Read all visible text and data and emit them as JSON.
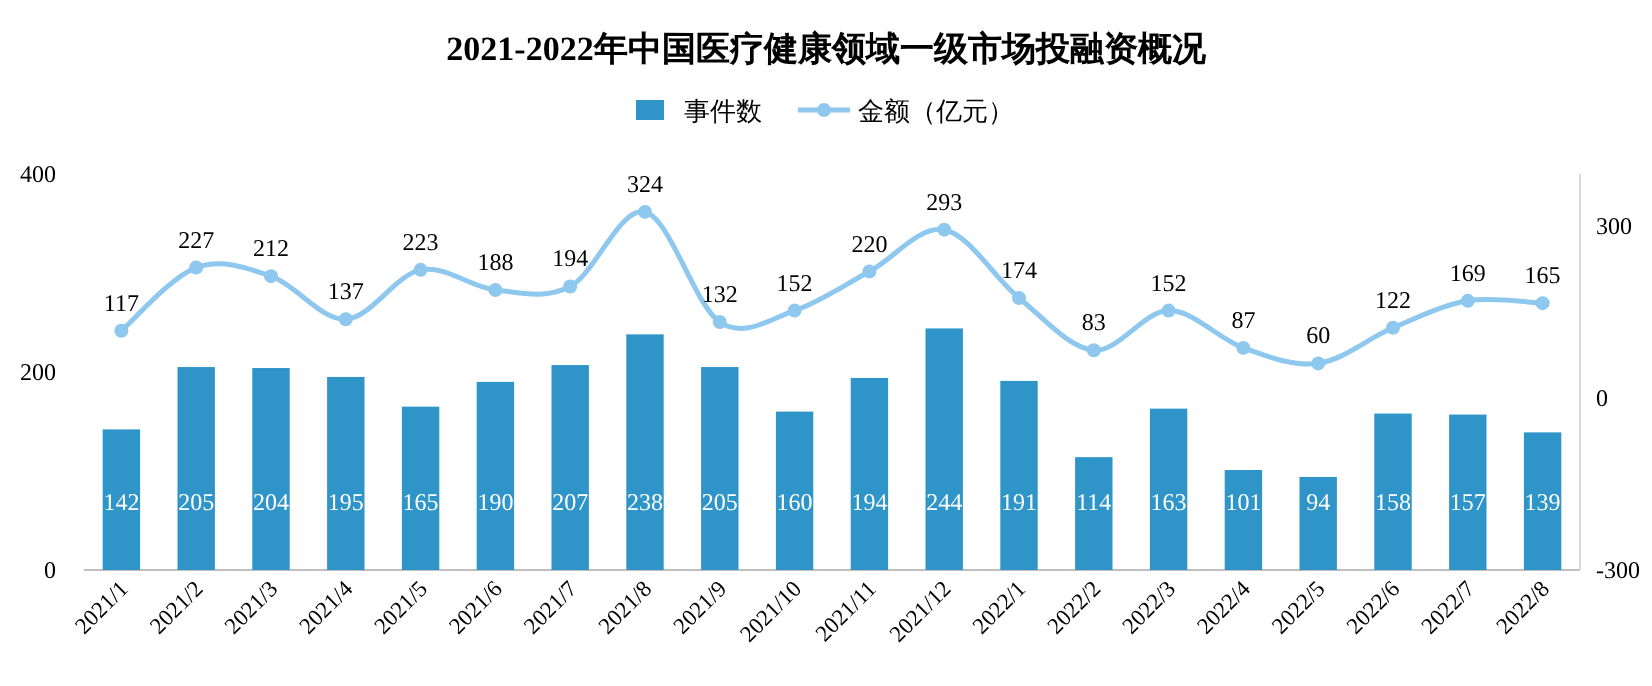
{
  "chart_data": {
    "type": "bar",
    "title": "2021-2022年中国医疗健康领域一级市场投融资概况",
    "categories": [
      "2021/1",
      "2021/2",
      "2021/3",
      "2021/4",
      "2021/5",
      "2021/6",
      "2021/7",
      "2021/8",
      "2021/9",
      "2021/10",
      "2021/11",
      "2021/12",
      "2022/1",
      "2022/2",
      "2022/3",
      "2022/4",
      "2022/5",
      "2022/6",
      "2022/7",
      "2022/8"
    ],
    "series": [
      {
        "name": "事件数",
        "color": "#2f95c9",
        "values": [
          142,
          205,
          204,
          195,
          165,
          190,
          207,
          238,
          205,
          160,
          194,
          244,
          191,
          114,
          163,
          101,
          94,
          158,
          157,
          139
        ]
      },
      {
        "name": "金额（亿元）",
        "type": "line",
        "axis": "y2",
        "color": "#8ec8ee",
        "marker": "circle",
        "line_style": "solid",
        "values": [
          117,
          227,
          212,
          137,
          223,
          188,
          194,
          324,
          132,
          152,
          220,
          293,
          174,
          83,
          152,
          87,
          60,
          122,
          169,
          165
        ]
      }
    ],
    "ylim": [
      0,
      400
    ],
    "yticks": [
      0,
      200,
      400
    ],
    "y2lim": [
      -300,
      390
    ],
    "y2ticks": [
      -300,
      0,
      300
    ],
    "legend": "top",
    "data_labels": true
  }
}
